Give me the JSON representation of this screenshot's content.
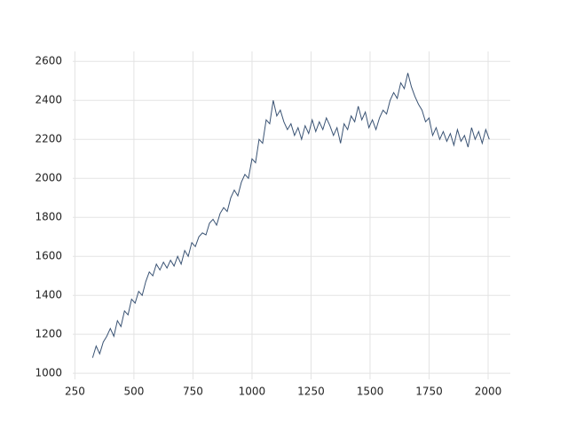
{
  "chart_data": {
    "type": "line",
    "x": [
      325,
      340,
      355,
      370,
      385,
      400,
      415,
      430,
      445,
      460,
      475,
      490,
      505,
      520,
      535,
      550,
      565,
      580,
      595,
      610,
      625,
      640,
      655,
      670,
      685,
      700,
      715,
      730,
      745,
      760,
      775,
      790,
      805,
      820,
      835,
      850,
      865,
      880,
      895,
      910,
      925,
      940,
      955,
      970,
      985,
      1000,
      1015,
      1030,
      1045,
      1060,
      1075,
      1090,
      1105,
      1120,
      1135,
      1150,
      1165,
      1180,
      1195,
      1210,
      1225,
      1240,
      1255,
      1270,
      1285,
      1300,
      1315,
      1330,
      1345,
      1360,
      1375,
      1390,
      1405,
      1420,
      1435,
      1450,
      1465,
      1480,
      1495,
      1510,
      1525,
      1540,
      1555,
      1570,
      1585,
      1600,
      1615,
      1630,
      1645,
      1660,
      1675,
      1690,
      1705,
      1720,
      1735,
      1750,
      1765,
      1780,
      1795,
      1810,
      1825,
      1840,
      1855,
      1870,
      1885,
      1900,
      1915,
      1930,
      1945,
      1960,
      1975,
      1990,
      2005
    ],
    "series": [
      {
        "color": "#3a5374",
        "values": [
          1080,
          1140,
          1100,
          1160,
          1190,
          1230,
          1190,
          1270,
          1240,
          1320,
          1300,
          1380,
          1360,
          1420,
          1400,
          1470,
          1520,
          1500,
          1560,
          1530,
          1570,
          1540,
          1580,
          1550,
          1600,
          1560,
          1630,
          1600,
          1670,
          1650,
          1700,
          1720,
          1710,
          1770,
          1790,
          1760,
          1820,
          1850,
          1830,
          1900,
          1940,
          1910,
          1980,
          2020,
          2000,
          2100,
          2080,
          2200,
          2180,
          2300,
          2280,
          2400,
          2320,
          2350,
          2290,
          2250,
          2280,
          2220,
          2260,
          2200,
          2270,
          2230,
          2300,
          2240,
          2290,
          2250,
          2310,
          2270,
          2220,
          2260,
          2180,
          2280,
          2250,
          2320,
          2290,
          2370,
          2300,
          2340,
          2260,
          2300,
          2250,
          2310,
          2350,
          2330,
          2400,
          2440,
          2410,
          2490,
          2460,
          2540,
          2470,
          2420,
          2380,
          2350,
          2290,
          2310,
          2220,
          2260,
          2200,
          2240,
          2190,
          2230,
          2170,
          2250,
          2190,
          2220,
          2160,
          2260,
          2200,
          2240,
          2180,
          2250,
          2200
        ]
      }
    ],
    "xlim": [
      241,
      2094
    ],
    "ylim": [
      969,
      2651
    ],
    "xticks": [
      250,
      500,
      750,
      1000,
      1250,
      1500,
      1750,
      2000
    ],
    "yticks": [
      1000,
      1200,
      1400,
      1600,
      1800,
      2000,
      2200,
      2400,
      2600
    ],
    "grid": true
  }
}
